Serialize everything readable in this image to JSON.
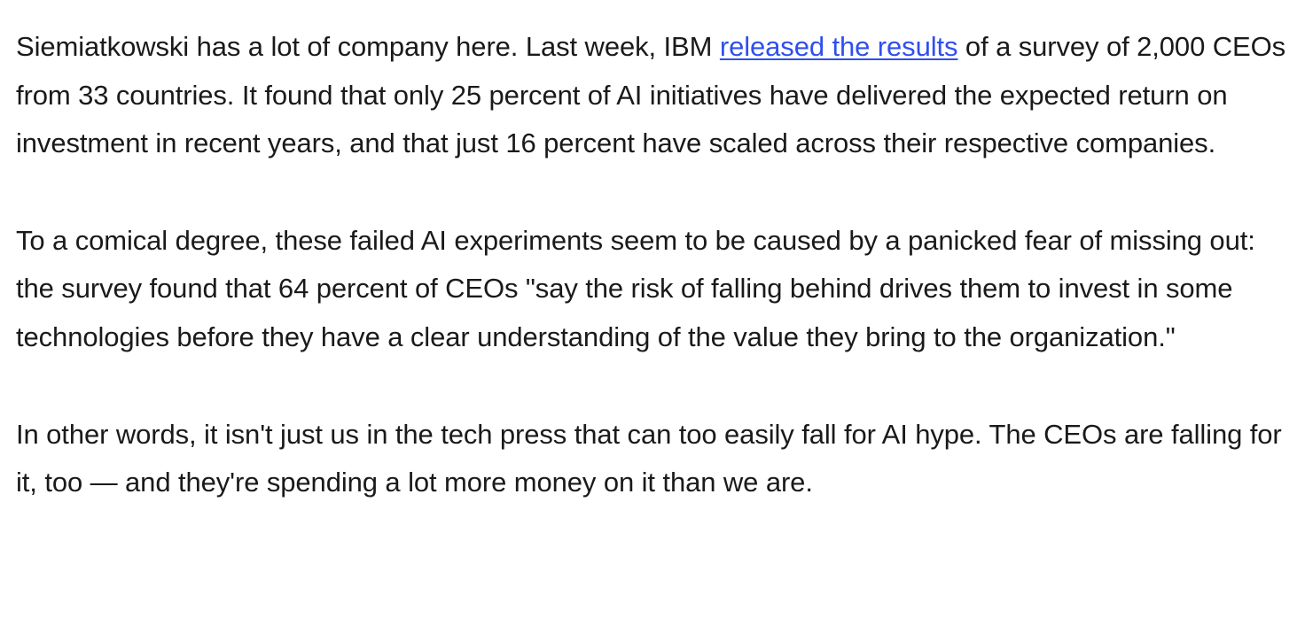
{
  "article": {
    "paragraph1": {
      "before_link": "Siemiatkowski has a lot of company here. Last week, IBM ",
      "link_text": "released the results",
      "after_link": " of a survey of 2,000 CEOs from 33 countries. It found that only 25 percent of AI initiatives have delivered the expected return on investment in recent years, and that just 16 percent have scaled across their respective companies."
    },
    "paragraph2": "To a comical degree, these failed AI experiments seem to be caused by a panicked fear of missing out: the survey found that 64 percent of CEOs \"say the risk of falling behind drives them to invest in some technologies before they have a clear understanding of the value they bring to the organization.\"",
    "paragraph3": "In other words, it isn't just us in the tech press that can too easily fall for AI hype. The CEOs are falling for it, too — and they're spending a lot more money on it than we are."
  },
  "colors": {
    "text": "#1a1a1a",
    "link": "#2f4ff0",
    "background": "#ffffff"
  }
}
